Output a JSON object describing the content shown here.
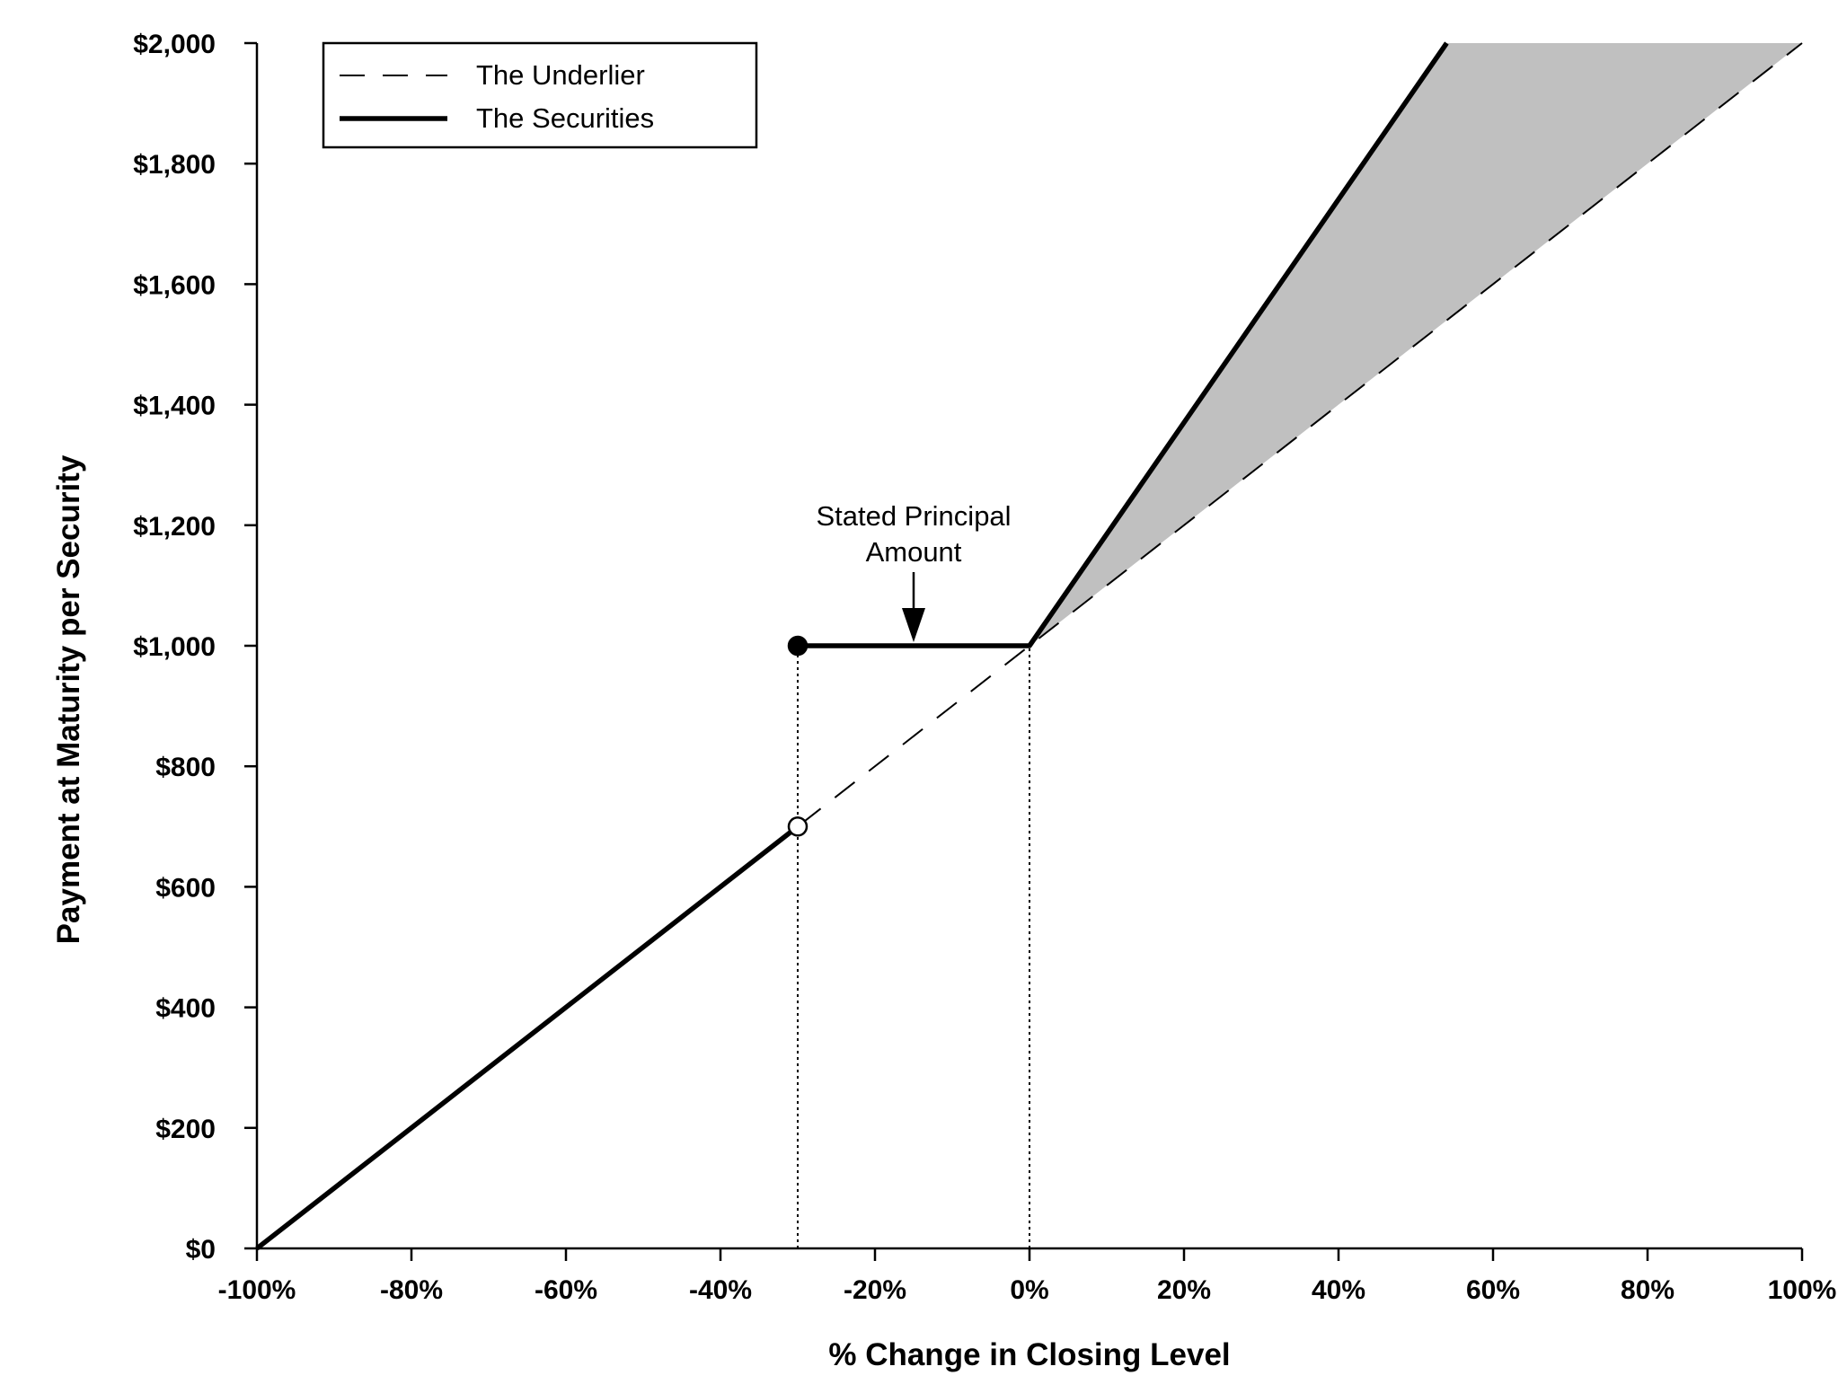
{
  "chart_data": {
    "type": "line",
    "title": "",
    "xlabel": "% Change in Closing Level",
    "ylabel": "Payment at Maturity per Security",
    "xlim": [
      -100,
      100
    ],
    "ylim": [
      0,
      2000
    ],
    "x_ticks": [
      -100,
      -80,
      -60,
      -40,
      -20,
      0,
      20,
      40,
      60,
      80,
      100
    ],
    "x_tick_labels": [
      "-100%",
      "-80%",
      "-60%",
      "-40%",
      "-20%",
      "0%",
      "20%",
      "40%",
      "60%",
      "80%",
      "100%"
    ],
    "y_ticks": [
      0,
      200,
      400,
      600,
      800,
      1000,
      1200,
      1400,
      1600,
      1800,
      2000
    ],
    "y_tick_labels": [
      "$0",
      "$200",
      "$400",
      "$600",
      "$800",
      "$1,000",
      "$1,200",
      "$1,400",
      "$1,600",
      "$1,800",
      "$2,000"
    ],
    "grid": false,
    "legend_position": "top-left",
    "series": [
      {
        "name": "The Underlier",
        "style": "dashed",
        "points": [
          [
            -100,
            0
          ],
          [
            100,
            2000
          ]
        ]
      },
      {
        "name": "The Securities",
        "style": "solid",
        "segments": [
          [
            [
              -100,
              0
            ],
            [
              -30,
              700
            ]
          ],
          [
            [
              -30,
              1000
            ],
            [
              0,
              1000
            ],
            [
              54,
              2000
            ]
          ]
        ]
      }
    ],
    "markers": [
      {
        "x": -30,
        "y": 1000,
        "fill": "filled"
      },
      {
        "x": -30,
        "y": 700,
        "fill": "open"
      }
    ],
    "reference_lines": [
      {
        "x": -30,
        "from_y": 0,
        "to_y": 1000,
        "style": "dotted"
      },
      {
        "x": 0,
        "from_y": 0,
        "to_y": 1000,
        "style": "dotted"
      }
    ],
    "shaded_region": {
      "color": "#c0c0c0",
      "polygon": [
        [
          0,
          1000
        ],
        [
          54,
          2000
        ],
        [
          100,
          2000
        ]
      ]
    },
    "annotations": [
      {
        "lines": [
          "Stated Principal",
          "Amount"
        ],
        "points_to": [
          -15,
          1000
        ]
      }
    ],
    "colors": {
      "line": "#000000",
      "shade": "#c0c0c0",
      "background": "#ffffff"
    }
  }
}
